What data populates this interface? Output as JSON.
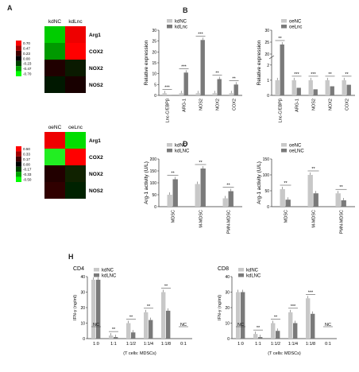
{
  "panels": {
    "A": "A",
    "B": "B",
    "D": "D",
    "H": "H"
  },
  "heatmap1": {
    "cols": [
      "kdNC",
      "kdLnc"
    ],
    "rows": [
      "Arg1",
      "COX2",
      "NOX2",
      "NOS2"
    ],
    "scale": [
      "0.70",
      "0.47",
      "0.23",
      "0.00",
      "-0.23",
      "-0.47",
      "-0.70"
    ],
    "cells": [
      [
        "#00cc00",
        "#ee0000"
      ],
      [
        "#009900",
        "#ff0000"
      ],
      [
        "#200000",
        "#0a1a00"
      ],
      [
        "#001800",
        "#180000"
      ]
    ]
  },
  "heatmap2": {
    "cols": [
      "oeNC",
      "oeLnc"
    ],
    "rows": [
      "Arg1",
      "COX2",
      "NOX2",
      "NOS2"
    ],
    "scale": [
      "0.50",
      "0.33",
      "0.17",
      "0.00",
      "-0.17",
      "-0.33",
      "-0.50"
    ],
    "cells": [
      [
        "#ee0000",
        "#00dd00"
      ],
      [
        "#22ee22",
        "#ff0000"
      ],
      [
        "#220000",
        "#102200"
      ],
      [
        "#300000",
        "#002200"
      ]
    ]
  },
  "chart_data": [
    {
      "type": "bar",
      "panel": "B",
      "ylabel": "Relative expression",
      "categories": [
        "Lnc-C/EBPβ",
        "ARG-1",
        "NOS2",
        "NOX2",
        "COX2"
      ],
      "series": [
        {
          "name": "kdNC",
          "values": [
            1,
            1,
            1,
            1,
            1
          ]
        },
        {
          "name": "kdLnc",
          "values": [
            0.15,
            10.5,
            25.5,
            7.5,
            5
          ]
        }
      ],
      "ylim": [
        0,
        30
      ],
      "yticks": [
        "0",
        "5",
        "10",
        "15",
        "20",
        "25",
        "30"
      ],
      "significance": [
        "***",
        "***",
        "***",
        "**",
        "**"
      ]
    },
    {
      "type": "bar",
      "panel": "B",
      "ylabel": "Relative expression",
      "categories": [
        "Lnc-C/EBPβ",
        "ARG-1",
        "NOS2",
        "NOX2",
        "COX2"
      ],
      "series": [
        {
          "name": "oeNC",
          "values": [
            1,
            1,
            1,
            1,
            1
          ]
        },
        {
          "name": "oeLnc",
          "values": [
            24,
            0.5,
            0.4,
            0.6,
            0.7
          ]
        }
      ],
      "yticks_low": [
        "0",
        "1",
        "2"
      ],
      "yticks_high": [
        "20",
        "25",
        "30"
      ],
      "significance": [
        "**",
        "***",
        "***",
        "**",
        "**"
      ]
    },
    {
      "type": "bar",
      "panel": "D",
      "ylabel": "Arg-1 activity (U/L)",
      "categories": [
        "MDSC",
        "M-MDSC",
        "PMN-MDSC"
      ],
      "series": [
        {
          "name": "kdNC",
          "values": [
            50,
            95,
            35
          ]
        },
        {
          "name": "kdLNC",
          "values": [
            115,
            160,
            65
          ]
        }
      ],
      "ylim": [
        0,
        200
      ],
      "yticks": [
        "0",
        "50",
        "100",
        "150",
        "200"
      ],
      "significance": [
        "**",
        "**",
        "**"
      ]
    },
    {
      "type": "bar",
      "panel": "D",
      "ylabel": "Arg-1 activity (U/L)",
      "categories": [
        "MDSC",
        "M-MDSC",
        "PMN-MDSC"
      ],
      "series": [
        {
          "name": "oeNC",
          "values": [
            55,
            100,
            42
          ]
        },
        {
          "name": "oeLNC",
          "values": [
            22,
            42,
            20
          ]
        }
      ],
      "ylim": [
        0,
        150
      ],
      "yticks": [
        "0",
        "50",
        "100",
        "150"
      ],
      "significance": [
        "**",
        "**",
        "**"
      ]
    },
    {
      "type": "bar",
      "panel": "H",
      "title": "CD4",
      "ylabel": "IFN-γ (ng/ml)",
      "xlabel": "(T cells: MDSCs)",
      "categories": [
        "1:0",
        "1:1",
        "1:1/2",
        "1:1/4",
        "1:1/8",
        "0:1"
      ],
      "series": [
        {
          "name": "kdNC",
          "values": [
            38,
            2,
            10,
            17,
            30,
            0
          ]
        },
        {
          "name": "kdLNC",
          "values": [
            38,
            1,
            4,
            12,
            18,
            0
          ]
        }
      ],
      "ylim": [
        0,
        40
      ],
      "yticks": [
        "0",
        "10",
        "20",
        "30",
        "40"
      ],
      "significance": [
        "NC",
        "**",
        "**",
        "**",
        "**",
        "NC"
      ]
    },
    {
      "type": "bar",
      "panel": "H",
      "title": "CD8",
      "ylabel": "IFN-γ (ng/ml)",
      "xlabel": "(T cells: MDSCs)",
      "categories": [
        "1:0",
        "1:1",
        "1:1/2",
        "1:1/4",
        "1:1/8",
        "0:1"
      ],
      "series": [
        {
          "name": "kdNC",
          "values": [
            30,
            3,
            10,
            17,
            26,
            0
          ]
        },
        {
          "name": "kdLNC",
          "values": [
            30,
            1,
            5,
            10,
            16,
            0
          ]
        }
      ],
      "ylim": [
        0,
        40
      ],
      "yticks": [
        "0",
        "10",
        "20",
        "30",
        "40"
      ],
      "significance": [
        "NC",
        "**",
        "**",
        "***",
        "***",
        "NC"
      ]
    }
  ],
  "colors": {
    "light": "#c8c8c8",
    "dark": "#7a7a7a"
  }
}
